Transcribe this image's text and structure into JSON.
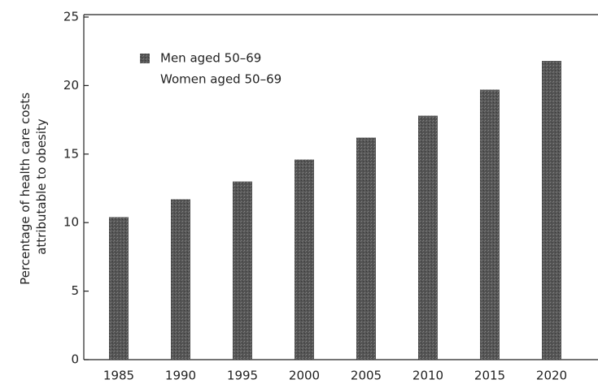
{
  "chart_data": {
    "type": "bar",
    "y_label": "Percentage of health care costs attributable to obesity",
    "categories": [
      "1985",
      "1990",
      "1995",
      "2000",
      "2005",
      "2010",
      "2015",
      "2020"
    ],
    "series": [
      {
        "name": "Men aged 50–69",
        "color": "#555555",
        "values": [
          10.4,
          11.7,
          13.0,
          14.6,
          16.2,
          17.8,
          19.7,
          21.8
        ]
      },
      {
        "name": "Women aged 50–69",
        "color": "#ffffff",
        "values": [
          null,
          null,
          null,
          null,
          null,
          null,
          null,
          null
        ]
      }
    ],
    "ylim": [
      0,
      25
    ],
    "yticks": [
      0,
      5,
      10,
      15,
      20,
      25
    ],
    "grid": false,
    "legend": "upper left"
  }
}
